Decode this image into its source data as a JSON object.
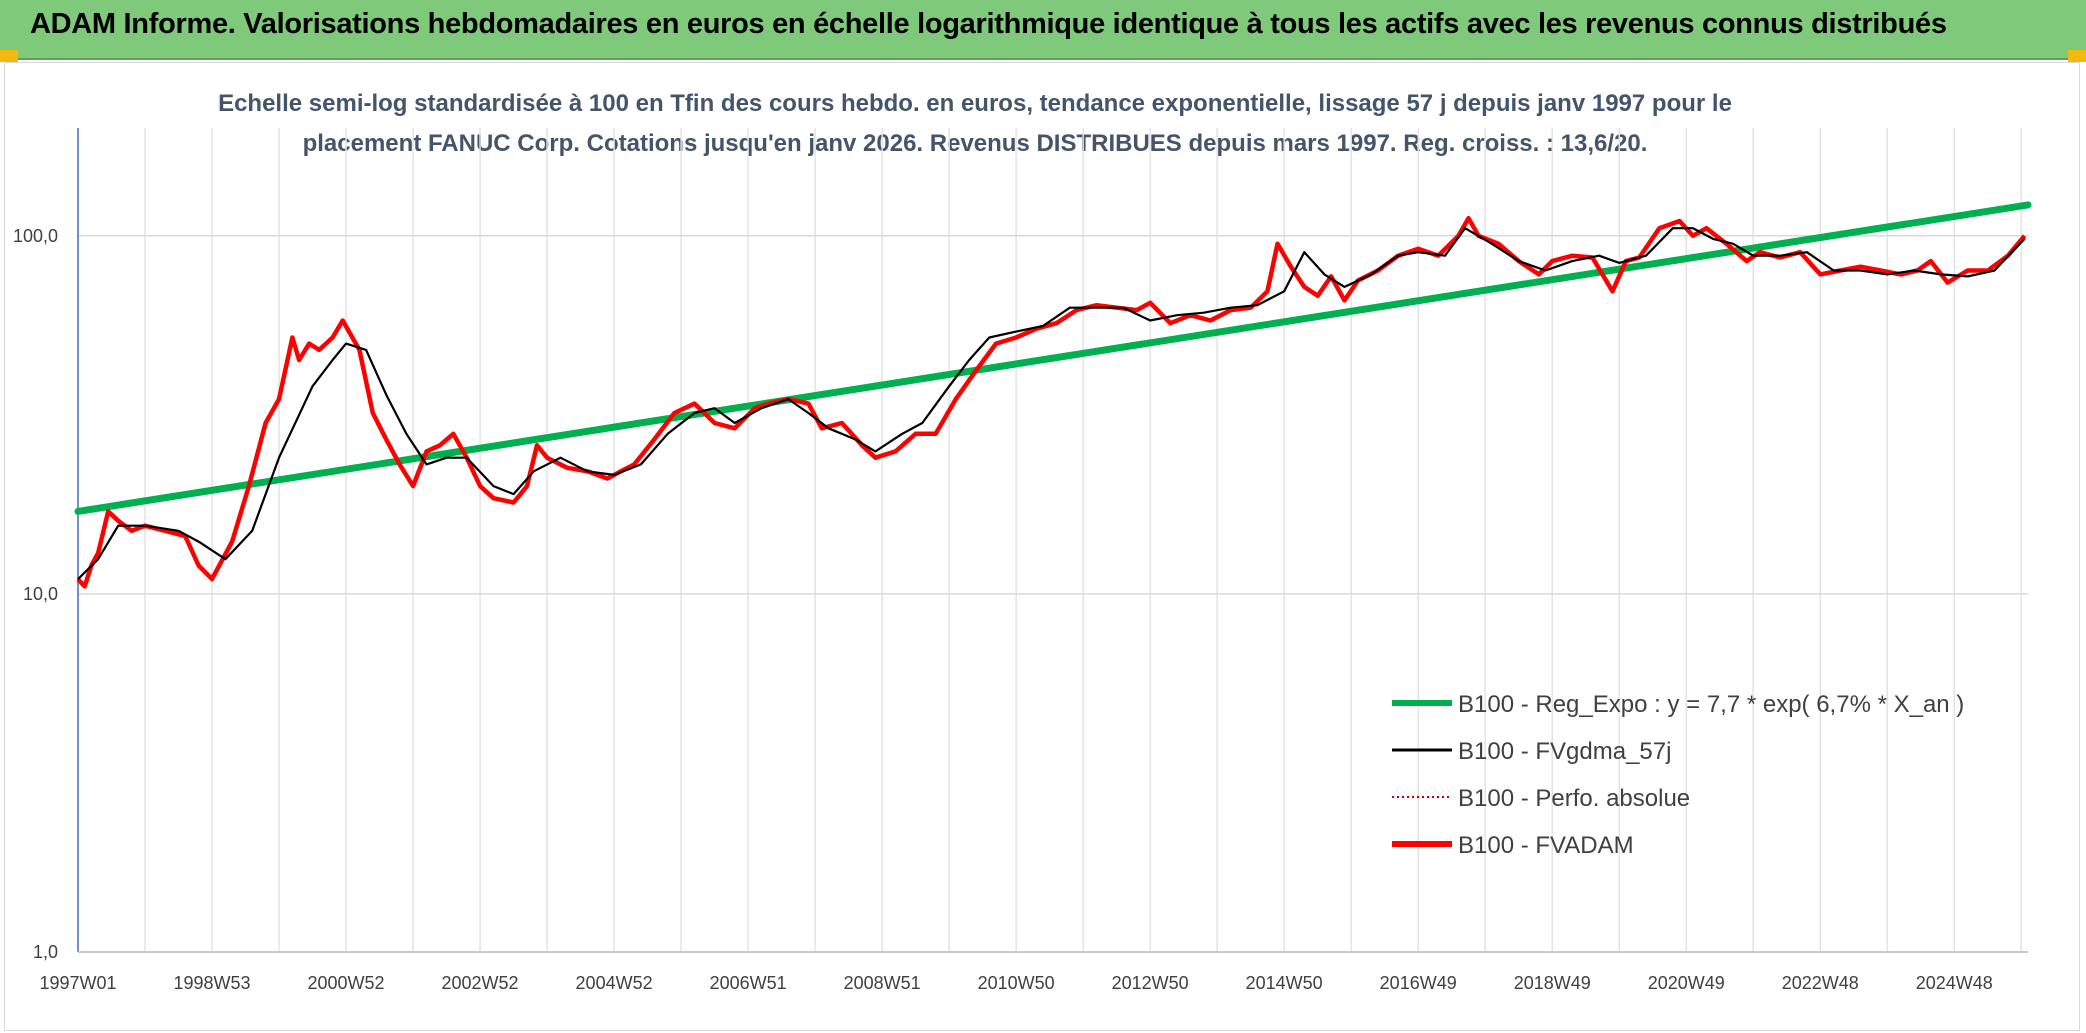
{
  "banner": {
    "title": "ADAM Informe. Valorisations hebdomadaires en euros en échelle logarithmique identique à tous les actifs avec les revenus connus distribués"
  },
  "colors": {
    "banner_bg": "#7ec97a",
    "corner": "#f2b90f",
    "regression": "#00b050",
    "smoothed": "#000000",
    "perfo": "#c00000",
    "fvadam": "#ff0000",
    "title_text": "#44546a"
  },
  "chart_data": {
    "type": "line",
    "title_line1": "Echelle semi-log standardisée à 100 en Tfin des cours hebdo. en euros, tendance exponentielle, lissage 57 j depuis janv 1997 pour le",
    "title_line2": "placement FANUC Corp. Cotations jusqu'en janv 2026. Revenus DISTRIBUES depuis mars 1997. Reg. croiss. : 13,6/20.",
    "y_scale": "log",
    "ylim": [
      1,
      200
    ],
    "xlim": [
      1997.0,
      2026.1
    ],
    "y_ticks": [
      {
        "value": 1,
        "label": "1,0"
      },
      {
        "value": 10,
        "label": "10,0"
      },
      {
        "value": 100,
        "label": "100,0"
      }
    ],
    "x_ticks": [
      {
        "value": 1997.0,
        "label": "1997W01"
      },
      {
        "value": 1999.0,
        "label": "1998W53"
      },
      {
        "value": 2001.0,
        "label": "2000W52"
      },
      {
        "value": 2003.0,
        "label": "2002W52"
      },
      {
        "value": 2005.0,
        "label": "2004W52"
      },
      {
        "value": 2007.0,
        "label": "2006W51"
      },
      {
        "value": 2009.0,
        "label": "2008W51"
      },
      {
        "value": 2011.0,
        "label": "2010W50"
      },
      {
        "value": 2013.0,
        "label": "2012W50"
      },
      {
        "value": 2015.0,
        "label": "2014W50"
      },
      {
        "value": 2017.0,
        "label": "2016W49"
      },
      {
        "value": 2019.0,
        "label": "2018W49"
      },
      {
        "value": 2021.0,
        "label": "2020W49"
      },
      {
        "value": 2023.0,
        "label": "2022W48"
      },
      {
        "value": 2025.0,
        "label": "2024W48"
      }
    ],
    "grid": true,
    "legend_position": "bottom-right",
    "series": [
      {
        "name": "B100 - Reg_Expo : y = 7,7 * exp( 6,7% *  X_an )",
        "style": "thick-green",
        "x": [
          1997.0,
          2026.1
        ],
        "y": [
          17.0,
          122.0
        ]
      },
      {
        "name": "B100 - FVgdma_57j",
        "style": "black-smooth",
        "x": [
          1997.0,
          1997.3,
          1997.6,
          1998.0,
          1998.5,
          1998.8,
          1999.2,
          1999.6,
          2000.0,
          2000.5,
          2000.8,
          2001.0,
          2001.3,
          2001.6,
          2001.9,
          2002.2,
          2002.5,
          2002.8,
          2003.2,
          2003.5,
          2003.8,
          2004.2,
          2004.6,
          2005.0,
          2005.4,
          2005.8,
          2006.2,
          2006.5,
          2006.8,
          2007.2,
          2007.6,
          2007.9,
          2008.2,
          2008.6,
          2008.9,
          2009.3,
          2009.6,
          2010.0,
          2010.3,
          2010.6,
          2011.0,
          2011.4,
          2011.8,
          2012.2,
          2012.6,
          2013.0,
          2013.4,
          2013.8,
          2014.2,
          2014.6,
          2015.0,
          2015.3,
          2015.6,
          2015.9,
          2016.3,
          2016.7,
          2017.0,
          2017.4,
          2017.7,
          2018.1,
          2018.5,
          2018.9,
          2019.3,
          2019.7,
          2020.0,
          2020.4,
          2020.8,
          2021.1,
          2021.4,
          2021.7,
          2022.0,
          2022.4,
          2022.8,
          2023.2,
          2023.6,
          2024.0,
          2024.4,
          2024.8,
          2025.2,
          2025.6,
          2026.05
        ],
        "y": [
          11.0,
          12.5,
          15.5,
          15.5,
          15.0,
          14.0,
          12.5,
          15.0,
          24.0,
          38.0,
          45.0,
          50.0,
          48.0,
          36.0,
          28.0,
          23.0,
          24.0,
          24.0,
          20.0,
          19.0,
          22.0,
          24.0,
          22.0,
          21.5,
          23.0,
          28.0,
          32.0,
          33.0,
          30.0,
          33.0,
          35.0,
          32.0,
          29.0,
          27.0,
          25.0,
          28.0,
          30.0,
          38.0,
          45.0,
          52.0,
          54.0,
          56.0,
          63.0,
          63.0,
          63.0,
          58.0,
          60.0,
          61.0,
          63.0,
          64.0,
          70.0,
          90.0,
          78.0,
          72.0,
          78.0,
          88.0,
          90.0,
          88.0,
          105.0,
          95.0,
          85.0,
          80.0,
          85.0,
          88.0,
          84.0,
          88.0,
          105.0,
          105.0,
          98.0,
          95.0,
          88.0,
          88.0,
          90.0,
          80.0,
          80.0,
          78.0,
          80.0,
          78.0,
          77.0,
          80.0,
          98.0
        ]
      },
      {
        "name": "B100 - Perfo. absolue",
        "style": "red-dotted"
      },
      {
        "name": "B100 - FVADAM",
        "style": "thick-red",
        "x": [
          1997.0,
          1997.1,
          1997.2,
          1997.3,
          1997.45,
          1997.6,
          1997.8,
          1998.0,
          1998.3,
          1998.6,
          1998.8,
          1999.0,
          1999.3,
          1999.55,
          1999.8,
          2000.0,
          2000.2,
          2000.3,
          2000.45,
          2000.6,
          2000.8,
          2000.95,
          2001.2,
          2001.4,
          2001.6,
          2001.8,
          2002.0,
          2002.2,
          2002.4,
          2002.6,
          2002.8,
          2003.0,
          2003.2,
          2003.5,
          2003.7,
          2003.85,
          2004.0,
          2004.3,
          2004.6,
          2004.9,
          2005.1,
          2005.3,
          2005.6,
          2005.9,
          2006.2,
          2006.5,
          2006.8,
          2007.1,
          2007.3,
          2007.6,
          2007.9,
          2008.1,
          2008.4,
          2008.7,
          2008.9,
          2009.2,
          2009.5,
          2009.8,
          2010.1,
          2010.4,
          2010.7,
          2011.0,
          2011.3,
          2011.6,
          2011.9,
          2012.2,
          2012.5,
          2012.8,
          2013.0,
          2013.3,
          2013.6,
          2013.9,
          2014.2,
          2014.5,
          2014.75,
          2014.9,
          2015.1,
          2015.3,
          2015.5,
          2015.7,
          2015.9,
          2016.1,
          2016.4,
          2016.7,
          2017.0,
          2017.3,
          2017.6,
          2017.75,
          2017.9,
          2018.2,
          2018.5,
          2018.8,
          2019.0,
          2019.3,
          2019.6,
          2019.9,
          2020.1,
          2020.3,
          2020.6,
          2020.9,
          2021.1,
          2021.3,
          2021.6,
          2021.9,
          2022.1,
          2022.4,
          2022.7,
          2023.0,
          2023.3,
          2023.6,
          2023.9,
          2024.2,
          2024.45,
          2024.65,
          2024.9,
          2025.2,
          2025.5,
          2025.8,
          2026.05
        ],
        "y": [
          11.0,
          10.5,
          12.0,
          13.0,
          17.0,
          16.0,
          15.0,
          15.5,
          15.0,
          14.5,
          12.0,
          11.0,
          14.0,
          20.0,
          30.0,
          35.0,
          52.0,
          45.0,
          50.0,
          48.0,
          52.0,
          58.0,
          48.0,
          32.0,
          27.0,
          23.0,
          20.0,
          25.0,
          26.0,
          28.0,
          24.0,
          20.0,
          18.5,
          18.0,
          20.0,
          26.0,
          24.0,
          22.5,
          22.0,
          21.0,
          22.0,
          23.0,
          27.0,
          32.0,
          34.0,
          30.0,
          29.0,
          33.0,
          34.0,
          35.0,
          34.0,
          29.0,
          30.0,
          26.0,
          24.0,
          25.0,
          28.0,
          28.0,
          35.0,
          42.0,
          50.0,
          52.0,
          55.0,
          57.0,
          62.0,
          64.0,
          63.0,
          62.0,
          65.0,
          57.0,
          60.0,
          58.0,
          62.0,
          63.0,
          70.0,
          95.0,
          82.0,
          72.0,
          68.0,
          77.0,
          66.0,
          75.0,
          80.0,
          88.0,
          92.0,
          88.0,
          100.0,
          112.0,
          100.0,
          95.0,
          85.0,
          78.0,
          85.0,
          88.0,
          87.0,
          70.0,
          85.0,
          87.0,
          105.0,
          110.0,
          100.0,
          105.0,
          95.0,
          85.0,
          90.0,
          87.0,
          90.0,
          78.0,
          80.0,
          82.0,
          80.0,
          78.0,
          80.0,
          85.0,
          74.0,
          80.0,
          80.0,
          88.0,
          100.0
        ]
      }
    ]
  },
  "legend": {
    "items": [
      {
        "label": "B100 - Reg_Expo : y = 7,7 * exp( 6,7% *  X_an )",
        "color": "#00b050",
        "style": "solid-thick"
      },
      {
        "label": "B100 - FVgdma_57j",
        "color": "#000000",
        "style": "solid"
      },
      {
        "label": "B100 - Perfo. absolue",
        "color": "#c00000",
        "style": "dotted"
      },
      {
        "label": "B100 - FVADAM",
        "color": "#ff0000",
        "style": "solid-thick"
      }
    ]
  }
}
